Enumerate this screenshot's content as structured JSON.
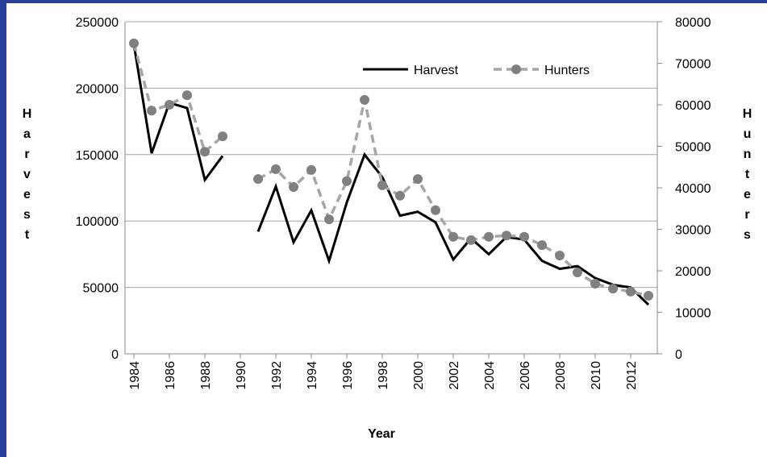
{
  "chart_data": {
    "type": "line",
    "x": [
      1984,
      1985,
      1986,
      1987,
      1988,
      1989,
      1990,
      1991,
      1992,
      1993,
      1994,
      1995,
      1996,
      1997,
      1998,
      1999,
      2000,
      2001,
      2002,
      2003,
      2004,
      2005,
      2006,
      2007,
      2008,
      2009,
      2010,
      2011,
      2012,
      2013
    ],
    "xlim": [
      1983.5,
      2013.5
    ],
    "xticks": [
      1984,
      1986,
      1988,
      1990,
      1992,
      1994,
      1996,
      1998,
      2000,
      2002,
      2004,
      2006,
      2008,
      2010,
      2012
    ],
    "xlabel": "Year",
    "ylabel": "Harvest",
    "y2label": "Hunters",
    "ylim": [
      0,
      250000
    ],
    "yticks": [
      0,
      50000,
      100000,
      150000,
      200000,
      250000
    ],
    "y2lim": [
      0,
      80000
    ],
    "y2ticks": [
      0,
      10000,
      20000,
      30000,
      40000,
      50000,
      60000,
      70000,
      80000
    ],
    "grid": true,
    "legend": "upper right",
    "series": [
      {
        "name": "Harvest",
        "color": "#000000",
        "values": [
          233000,
          151000,
          189000,
          185000,
          131000,
          149000,
          null,
          92000,
          126000,
          84000,
          108000,
          70000,
          114000,
          150000,
          133000,
          104000,
          107000,
          99000,
          71000,
          87000,
          75000,
          88000,
          86000,
          70000,
          64000,
          66000,
          57000,
          52000,
          50000,
          37000
        ]
      },
      {
        "name": "Hunters",
        "color": "#a6a6a6",
        "axis": "y2",
        "dashed": true,
        "marker_color": "#808080",
        "values": [
          74800,
          58600,
          60000,
          62300,
          48700,
          52400,
          null,
          42100,
          44500,
          40200,
          44300,
          32400,
          41600,
          61200,
          40600,
          38100,
          42100,
          34600,
          28200,
          27400,
          28200,
          28500,
          28200,
          26200,
          23700,
          19600,
          16900,
          15700,
          15000,
          14000
        ]
      }
    ]
  }
}
